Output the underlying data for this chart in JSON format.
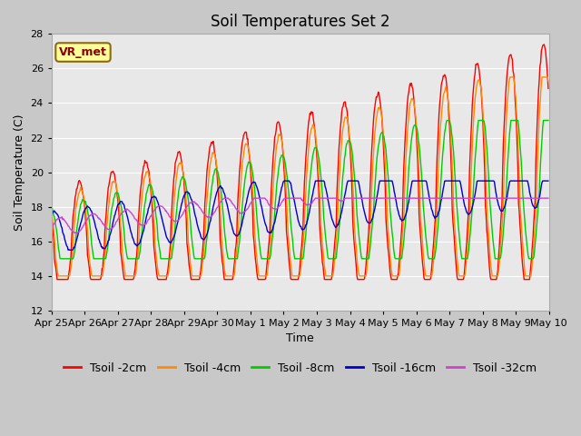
{
  "title": "Soil Temperatures Set 2",
  "xlabel": "Time",
  "ylabel": "Soil Temperature (C)",
  "ylim": [
    12,
    28
  ],
  "yticks": [
    12,
    14,
    16,
    18,
    20,
    22,
    24,
    26,
    28
  ],
  "x_tick_labels": [
    "Apr 25",
    "Apr 26",
    "Apr 27",
    "Apr 28",
    "Apr 29",
    "Apr 30",
    "May 1",
    "May 2",
    "May 3",
    "May 4",
    "May 5",
    "May 6",
    "May 7",
    "May 8",
    "May 9",
    "May 10"
  ],
  "colors": {
    "Tsoil -2cm": "#ff0000",
    "Tsoil -4cm": "#ff8c00",
    "Tsoil -8cm": "#00cc00",
    "Tsoil -16cm": "#0000cc",
    "Tsoil -32cm": "#cc44cc"
  },
  "annotation_text": "VR_met",
  "annotation_color": "#8b0000",
  "annotation_bg": "#ffff99",
  "annotation_border": "#8b6914",
  "plot_bg": "#e8e8e8",
  "grid_color": "#ffffff",
  "title_fontsize": 12,
  "axis_fontsize": 9,
  "tick_fontsize": 8,
  "legend_fontsize": 9
}
